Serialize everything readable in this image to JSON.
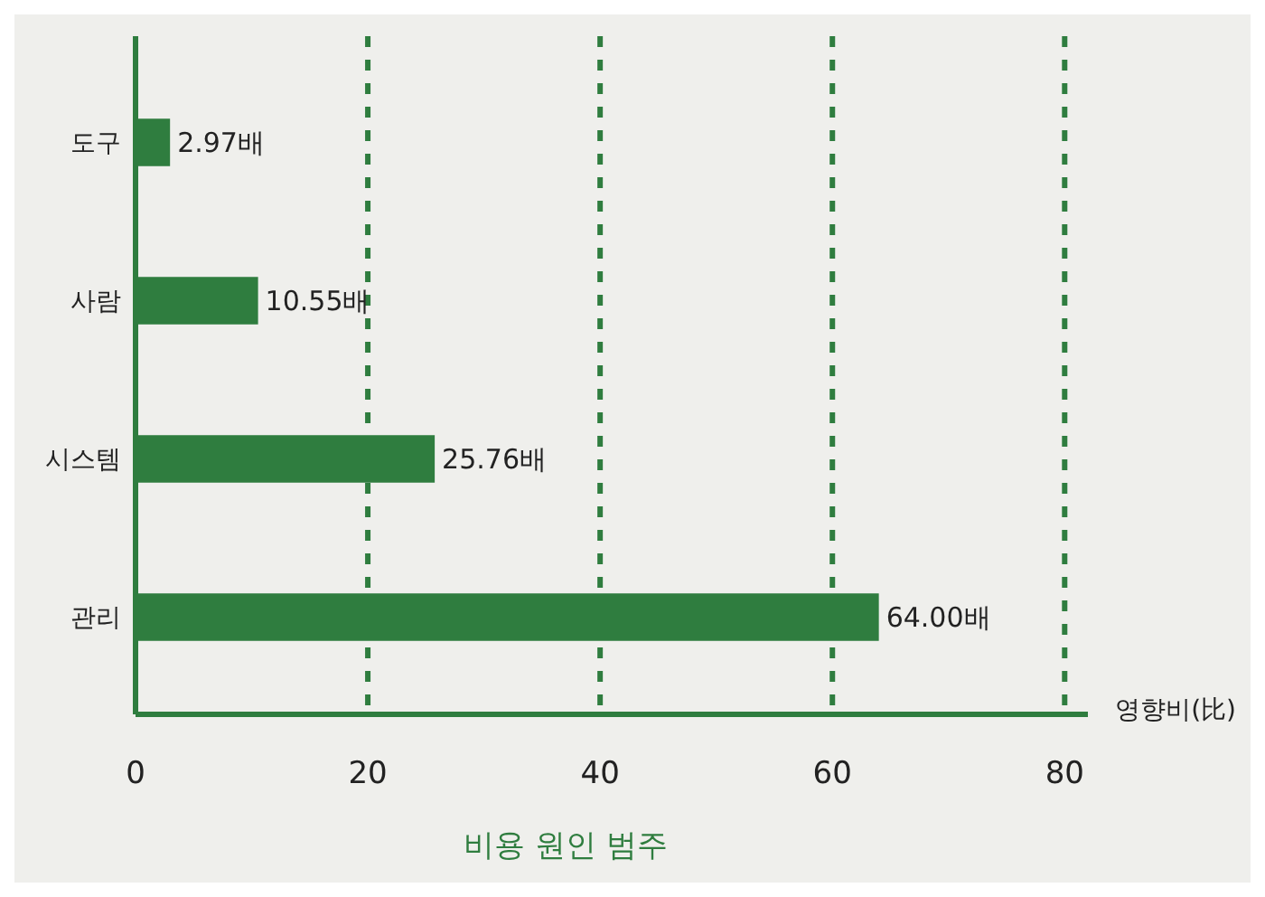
{
  "chart_data": {
    "type": "bar",
    "orientation": "horizontal",
    "title": "비용 원인 범주",
    "xlabel": "영향비(比)",
    "categories": [
      "도구",
      "사람",
      "시스템",
      "관리"
    ],
    "values": [
      2.97,
      10.55,
      25.76,
      64.0
    ],
    "value_labels": [
      "2.97배",
      "10.55배",
      "25.76배",
      "64.00배"
    ],
    "color": "#2f7d3f",
    "xlim": [
      0,
      82
    ],
    "xticks": [
      0,
      20,
      40,
      60,
      80
    ],
    "grid": "x",
    "line_style": "dashed"
  }
}
